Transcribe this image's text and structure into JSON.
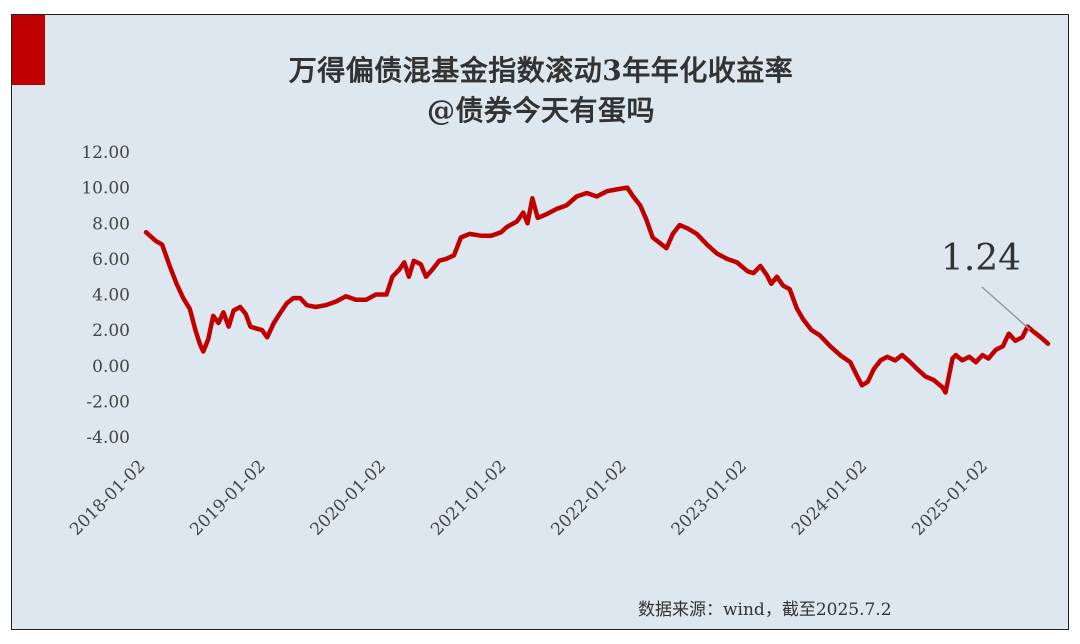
{
  "title_line1": "万得偏债混基金指数滚动3年年化收益率",
  "title_line2": "@债券今天有蛋吗",
  "source_note": "数据来源：wind，截至2025.7.2",
  "colors": {
    "accent": "#c00000",
    "line": "#c00000",
    "background": "#dde7ef"
  },
  "chart_data": {
    "type": "line",
    "title": "万得偏债混基金指数滚动3年年化收益率",
    "subtitle": "@债券今天有蛋吗",
    "ylim": [
      -4,
      12
    ],
    "yticks": [
      "12.00",
      "10.00",
      "8.00",
      "6.00",
      "4.00",
      "2.00",
      "0.00",
      "-2.00",
      "-4.00"
    ],
    "xlim": [
      "2018-01-02",
      "2025-07-02"
    ],
    "xticks": [
      "2018-01-02",
      "2019-01-02",
      "2020-01-02",
      "2021-01-02",
      "2022-01-02",
      "2023-01-02",
      "2024-01-02",
      "2025-01-02"
    ],
    "grid": false,
    "legend": "none",
    "annotation": {
      "text": "1.24",
      "x": "2025-07-02",
      "y": 1.24
    },
    "series": [
      {
        "points": [
          [
            "2018-01-02",
            7.5
          ],
          [
            "2018-02-01",
            7.0
          ],
          [
            "2018-02-20",
            6.8
          ],
          [
            "2018-03-15",
            5.6
          ],
          [
            "2018-04-05",
            4.6
          ],
          [
            "2018-04-25",
            3.8
          ],
          [
            "2018-05-15",
            3.2
          ],
          [
            "2018-06-01",
            2.0
          ],
          [
            "2018-06-15",
            1.2
          ],
          [
            "2018-06-25",
            0.8
          ],
          [
            "2018-07-10",
            1.5
          ],
          [
            "2018-07-25",
            2.8
          ],
          [
            "2018-08-10",
            2.4
          ],
          [
            "2018-08-25",
            3.0
          ],
          [
            "2018-09-10",
            2.2
          ],
          [
            "2018-09-25",
            3.1
          ],
          [
            "2018-10-15",
            3.3
          ],
          [
            "2018-11-01",
            2.9
          ],
          [
            "2018-11-15",
            2.2
          ],
          [
            "2018-12-01",
            2.1
          ],
          [
            "2018-12-20",
            2.0
          ],
          [
            "2019-01-05",
            1.6
          ],
          [
            "2019-01-25",
            2.4
          ],
          [
            "2019-02-15",
            3.0
          ],
          [
            "2019-03-05",
            3.5
          ],
          [
            "2019-03-25",
            3.8
          ],
          [
            "2019-04-15",
            3.8
          ],
          [
            "2019-05-05",
            3.4
          ],
          [
            "2019-06-01",
            3.3
          ],
          [
            "2019-07-01",
            3.4
          ],
          [
            "2019-08-01",
            3.6
          ],
          [
            "2019-09-01",
            3.9
          ],
          [
            "2019-10-01",
            3.7
          ],
          [
            "2019-11-01",
            3.7
          ],
          [
            "2019-12-01",
            4.0
          ],
          [
            "2020-01-02",
            4.0
          ],
          [
            "2020-01-20",
            5.0
          ],
          [
            "2020-02-10",
            5.4
          ],
          [
            "2020-02-25",
            5.8
          ],
          [
            "2020-03-10",
            5.0
          ],
          [
            "2020-03-25",
            5.9
          ],
          [
            "2020-04-15",
            5.7
          ],
          [
            "2020-05-01",
            5.0
          ],
          [
            "2020-05-20",
            5.4
          ],
          [
            "2020-06-10",
            5.9
          ],
          [
            "2020-07-01",
            6.0
          ],
          [
            "2020-07-25",
            6.2
          ],
          [
            "2020-08-15",
            7.2
          ],
          [
            "2020-09-10",
            7.4
          ],
          [
            "2020-10-15",
            7.3
          ],
          [
            "2020-11-15",
            7.3
          ],
          [
            "2020-12-15",
            7.5
          ],
          [
            "2021-01-02",
            7.8
          ],
          [
            "2021-02-01",
            8.1
          ],
          [
            "2021-02-20",
            8.6
          ],
          [
            "2021-03-05",
            8.0
          ],
          [
            "2021-03-20",
            9.4
          ],
          [
            "2021-04-05",
            8.3
          ],
          [
            "2021-05-01",
            8.5
          ],
          [
            "2021-06-01",
            8.8
          ],
          [
            "2021-07-01",
            9.0
          ],
          [
            "2021-08-01",
            9.5
          ],
          [
            "2021-09-01",
            9.7
          ],
          [
            "2021-10-01",
            9.5
          ],
          [
            "2021-11-01",
            9.8
          ],
          [
            "2021-12-01",
            9.9
          ],
          [
            "2022-01-02",
            10.0
          ],
          [
            "2022-01-20",
            9.5
          ],
          [
            "2022-02-10",
            9.0
          ],
          [
            "2022-03-01",
            8.2
          ],
          [
            "2022-03-20",
            7.2
          ],
          [
            "2022-04-10",
            6.9
          ],
          [
            "2022-05-01",
            6.6
          ],
          [
            "2022-05-20",
            7.4
          ],
          [
            "2022-06-10",
            7.9
          ],
          [
            "2022-07-05",
            7.7
          ],
          [
            "2022-08-01",
            7.4
          ],
          [
            "2022-09-01",
            6.8
          ],
          [
            "2022-10-01",
            6.3
          ],
          [
            "2022-11-01",
            6.0
          ],
          [
            "2022-12-01",
            5.8
          ],
          [
            "2023-01-02",
            5.3
          ],
          [
            "2023-01-20",
            5.2
          ],
          [
            "2023-02-10",
            5.6
          ],
          [
            "2023-03-01",
            5.1
          ],
          [
            "2023-03-15",
            4.6
          ],
          [
            "2023-04-01",
            5.0
          ],
          [
            "2023-04-20",
            4.5
          ],
          [
            "2023-05-10",
            4.3
          ],
          [
            "2023-06-01",
            3.2
          ],
          [
            "2023-06-20",
            2.6
          ],
          [
            "2023-07-15",
            2.0
          ],
          [
            "2023-08-10",
            1.7
          ],
          [
            "2023-09-10",
            1.1
          ],
          [
            "2023-10-10",
            0.6
          ],
          [
            "2023-11-10",
            0.2
          ],
          [
            "2023-12-01",
            -0.6
          ],
          [
            "2023-12-15",
            -1.1
          ],
          [
            "2024-01-02",
            -0.9
          ],
          [
            "2024-01-20",
            -0.2
          ],
          [
            "2024-02-10",
            0.3
          ],
          [
            "2024-03-01",
            0.5
          ],
          [
            "2024-03-25",
            0.3
          ],
          [
            "2024-04-15",
            0.6
          ],
          [
            "2024-05-10",
            0.2
          ],
          [
            "2024-06-01",
            -0.2
          ],
          [
            "2024-06-25",
            -0.6
          ],
          [
            "2024-07-20",
            -0.8
          ],
          [
            "2024-08-15",
            -1.2
          ],
          [
            "2024-08-25",
            -1.5
          ],
          [
            "2024-09-05",
            -0.5
          ],
          [
            "2024-09-15",
            0.4
          ],
          [
            "2024-09-25",
            0.6
          ],
          [
            "2024-10-15",
            0.3
          ],
          [
            "2024-11-05",
            0.5
          ],
          [
            "2024-11-25",
            0.2
          ],
          [
            "2024-12-15",
            0.6
          ],
          [
            "2025-01-02",
            0.4
          ],
          [
            "2025-01-25",
            0.9
          ],
          [
            "2025-02-15",
            1.1
          ],
          [
            "2025-03-05",
            1.8
          ],
          [
            "2025-03-25",
            1.4
          ],
          [
            "2025-04-15",
            1.6
          ],
          [
            "2025-05-01",
            2.2
          ],
          [
            "2025-05-20",
            1.9
          ],
          [
            "2025-06-10",
            1.6
          ],
          [
            "2025-07-02",
            1.24
          ]
        ]
      }
    ]
  }
}
